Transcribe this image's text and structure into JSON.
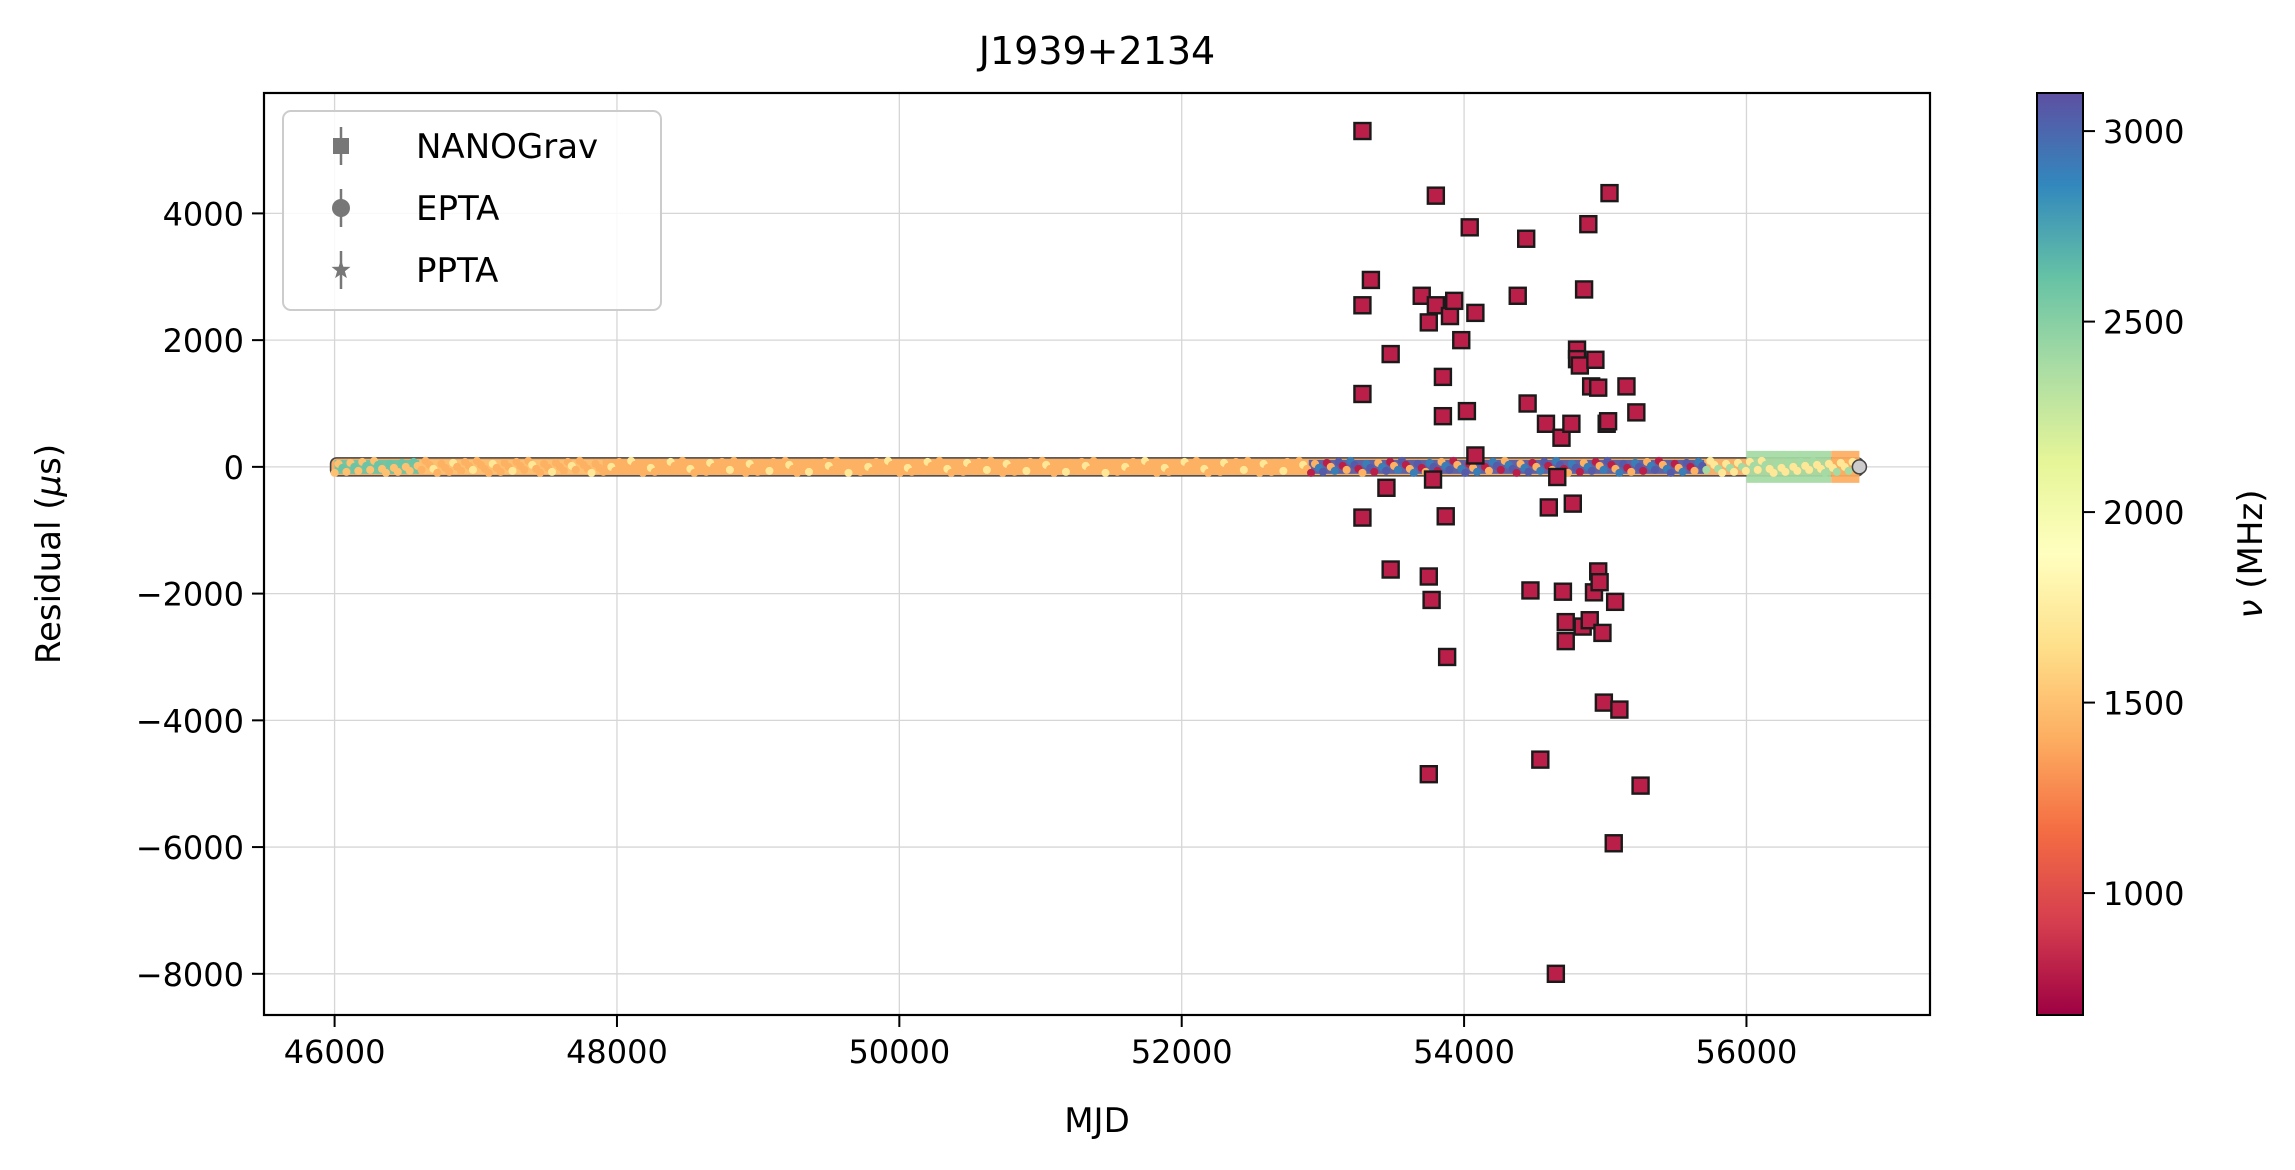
{
  "chart_data": {
    "type": "scatter",
    "title": "J1939+2134",
    "xlabel": "MJD",
    "ylabel": "Residual (μs)",
    "ylabel_prefix": "Residual (",
    "ylabel_unit_symbol": "μ",
    "ylabel_unit_rest": "s)",
    "xlim": [
      45500,
      57300
    ],
    "ylim": [
      -8650,
      5900
    ],
    "x_ticks": [
      46000,
      48000,
      50000,
      52000,
      54000,
      56000
    ],
    "x_tick_labels": [
      "46000",
      "48000",
      "50000",
      "52000",
      "54000",
      "56000"
    ],
    "y_ticks": [
      4000,
      2000,
      0,
      -2000,
      -4000,
      -6000,
      -8000
    ],
    "y_tick_labels": [
      "4000",
      "2000",
      "0",
      "−2000",
      "−4000",
      "−6000",
      "−8000"
    ],
    "grid": true,
    "legend": {
      "placement": "top-left",
      "entries": [
        {
          "label": "NANOGrav",
          "marker": "square"
        },
        {
          "label": "EPTA",
          "marker": "circle"
        },
        {
          "label": "PPTA",
          "marker": "star"
        }
      ]
    },
    "colorbar": {
      "label_symbol": "ν",
      "label_unit": " (MHz)",
      "range": [
        680,
        3100
      ],
      "ticks": [
        1000,
        1500,
        2000,
        2500,
        3000
      ],
      "tick_labels": [
        "1000",
        "1500",
        "2000",
        "2500",
        "3000"
      ],
      "colormap": "Spectral",
      "colors": [
        "#9e0142",
        "#d53e4f",
        "#f46d43",
        "#fdae61",
        "#fee08b",
        "#ffffbf",
        "#e6f598",
        "#abdda4",
        "#66c2a5",
        "#3288bd",
        "#5e4fa2"
      ]
    },
    "series": [
      {
        "name": "NANOGrav",
        "marker": "square",
        "freq_mhz": 800,
        "points": [
          [
            53280,
            5300
          ],
          [
            53280,
            2550
          ],
          [
            53340,
            2950
          ],
          [
            53280,
            1150
          ],
          [
            53480,
            1780
          ],
          [
            53280,
            -800
          ],
          [
            53450,
            -330
          ],
          [
            53480,
            -1620
          ],
          [
            53700,
            2700
          ],
          [
            53750,
            2280
          ],
          [
            53800,
            4280
          ],
          [
            53800,
            2550
          ],
          [
            53850,
            1420
          ],
          [
            53850,
            800
          ],
          [
            53870,
            -780
          ],
          [
            53880,
            -3000
          ],
          [
            53750,
            -1730
          ],
          [
            53770,
            -2100
          ],
          [
            53750,
            -4850
          ],
          [
            53780,
            -200
          ],
          [
            53900,
            2380
          ],
          [
            53930,
            2620
          ],
          [
            53980,
            2000
          ],
          [
            54020,
            880
          ],
          [
            54040,
            3780
          ],
          [
            54080,
            2430
          ],
          [
            54080,
            180
          ],
          [
            54380,
            2700
          ],
          [
            54440,
            3600
          ],
          [
            54450,
            1000
          ],
          [
            54470,
            -1950
          ],
          [
            54540,
            -4620
          ],
          [
            54580,
            680
          ],
          [
            54600,
            -640
          ],
          [
            54660,
            -160
          ],
          [
            54650,
            -8000
          ],
          [
            54690,
            460
          ],
          [
            54700,
            -1970
          ],
          [
            54720,
            -2450
          ],
          [
            54720,
            -2750
          ],
          [
            54760,
            680
          ],
          [
            54770,
            -580
          ],
          [
            54800,
            1850
          ],
          [
            54800,
            1700
          ],
          [
            54820,
            1600
          ],
          [
            54840,
            -2520
          ],
          [
            54850,
            2800
          ],
          [
            54880,
            3830
          ],
          [
            54890,
            -2420
          ],
          [
            54900,
            1270
          ],
          [
            54920,
            -1980
          ],
          [
            54930,
            1690
          ],
          [
            54950,
            1250
          ],
          [
            54950,
            -1650
          ],
          [
            54960,
            -1820
          ],
          [
            54980,
            -2620
          ],
          [
            54990,
            -3720
          ],
          [
            55010,
            680
          ],
          [
            55020,
            720
          ],
          [
            55030,
            4320
          ],
          [
            55060,
            -5940
          ],
          [
            55070,
            -2130
          ],
          [
            55100,
            -3830
          ],
          [
            55150,
            1270
          ],
          [
            55220,
            860
          ],
          [
            55250,
            -5030
          ]
        ]
      }
    ],
    "dense_band": [
      {
        "x_range": [
          46000,
          46600
        ],
        "freq_mhz": 2600
      },
      {
        "x_range": [
          46600,
          47900
        ],
        "freq_mhz": 1500
      },
      {
        "x_range": [
          47900,
          50400
        ],
        "freq_mhz": 1420
      },
      {
        "x_range": [
          50400,
          52900
        ],
        "freq_mhz": 1420
      },
      {
        "x_range": [
          52900,
          55700
        ],
        "freq_mhz": 3050
      },
      {
        "x_range": [
          56000,
          56600
        ],
        "freq_mhz": 2400
      },
      {
        "x_range": [
          56600,
          56800
        ],
        "freq_mhz": 1400
      }
    ]
  }
}
